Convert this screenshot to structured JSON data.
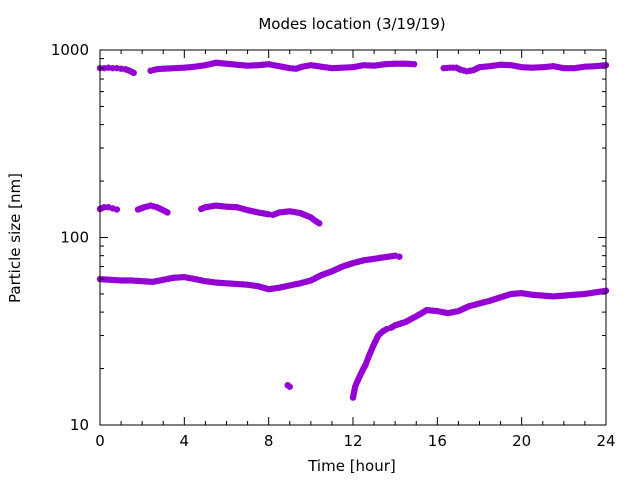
{
  "chart_data": {
    "type": "scatter",
    "title": "Modes location (3/19/19)",
    "xlabel": "Time [hour]",
    "ylabel": "Particle size [nm]",
    "xlim": [
      0,
      24
    ],
    "ylim": [
      10,
      1000
    ],
    "y_scale": "log",
    "x_ticks": [
      0,
      4,
      8,
      12,
      16,
      20,
      24
    ],
    "x_tick_labels": [
      "0",
      "4",
      "8",
      "12",
      "16",
      "20",
      "24"
    ],
    "y_ticks": [
      10,
      100,
      1000
    ],
    "y_tick_labels": [
      "10",
      "100",
      "1000"
    ],
    "grid": false,
    "marker_color": "#9400D3",
    "series": [
      {
        "points": [
          [
            0,
            800
          ],
          [
            0.2,
            800
          ],
          [
            0.4,
            805
          ],
          [
            0.6,
            800
          ],
          [
            0.8,
            800
          ],
          [
            1.0,
            795
          ],
          [
            1.2,
            790
          ],
          [
            1.4,
            775
          ],
          [
            1.6,
            755
          ],
          [
            2.4,
            775
          ],
          [
            2.7,
            790
          ],
          [
            3.0,
            795
          ],
          [
            3.5,
            800
          ],
          [
            4.0,
            805
          ],
          [
            4.5,
            815
          ],
          [
            5.0,
            830
          ],
          [
            5.5,
            855
          ],
          [
            6.0,
            845
          ],
          [
            6.5,
            835
          ],
          [
            7.0,
            825
          ],
          [
            7.5,
            830
          ],
          [
            8.0,
            840
          ],
          [
            8.5,
            820
          ],
          [
            9.0,
            800
          ],
          [
            9.3,
            795
          ],
          [
            9.6,
            815
          ],
          [
            10.0,
            830
          ],
          [
            10.5,
            815
          ],
          [
            11.0,
            800
          ],
          [
            11.5,
            805
          ],
          [
            12.0,
            810
          ],
          [
            12.5,
            830
          ],
          [
            13.0,
            825
          ],
          [
            13.5,
            840
          ],
          [
            14.0,
            845
          ],
          [
            14.5,
            845
          ],
          [
            14.9,
            840
          ],
          [
            16.3,
            800
          ],
          [
            16.6,
            805
          ],
          [
            16.9,
            805
          ],
          [
            17.1,
            785
          ],
          [
            17.4,
            770
          ],
          [
            17.7,
            780
          ],
          [
            18.0,
            810
          ],
          [
            18.5,
            820
          ],
          [
            19.0,
            835
          ],
          [
            19.5,
            830
          ],
          [
            20.0,
            810
          ],
          [
            20.5,
            805
          ],
          [
            21.0,
            810
          ],
          [
            21.5,
            820
          ],
          [
            22.0,
            800
          ],
          [
            22.5,
            800
          ],
          [
            23.0,
            815
          ],
          [
            23.5,
            820
          ],
          [
            24.0,
            830
          ],
          [
            0,
            142
          ],
          [
            0.2,
            145
          ],
          [
            0.4,
            145
          ],
          [
            0.6,
            143
          ],
          [
            0.8,
            141
          ],
          [
            1.8,
            141
          ],
          [
            2.1,
            145
          ],
          [
            2.4,
            148
          ],
          [
            2.7,
            145
          ],
          [
            3.1,
            138
          ],
          [
            3.2,
            136
          ],
          [
            4.8,
            142
          ],
          [
            5.0,
            145
          ],
          [
            5.5,
            148
          ],
          [
            6.0,
            146
          ],
          [
            6.5,
            145
          ],
          [
            7.0,
            140
          ],
          [
            7.5,
            136
          ],
          [
            8.0,
            133
          ],
          [
            8.2,
            132
          ],
          [
            8.5,
            136
          ],
          [
            9.0,
            138
          ],
          [
            9.5,
            135
          ],
          [
            10.0,
            128
          ],
          [
            10.2,
            123
          ],
          [
            10.4,
            119
          ],
          [
            0,
            60
          ],
          [
            0.5,
            59.5
          ],
          [
            1.0,
            59
          ],
          [
            1.5,
            59
          ],
          [
            2.0,
            58.5
          ],
          [
            2.5,
            58
          ],
          [
            3.0,
            59.5
          ],
          [
            3.5,
            61
          ],
          [
            4.0,
            61.5
          ],
          [
            4.5,
            60
          ],
          [
            5.0,
            58.5
          ],
          [
            5.5,
            57.5
          ],
          [
            6.0,
            57
          ],
          [
            6.5,
            56.5
          ],
          [
            7.0,
            56
          ],
          [
            7.5,
            55
          ],
          [
            8.0,
            53
          ],
          [
            8.5,
            54
          ],
          [
            9.0,
            55.5
          ],
          [
            9.5,
            57
          ],
          [
            10.0,
            59
          ],
          [
            10.5,
            63
          ],
          [
            11.0,
            66
          ],
          [
            11.5,
            70
          ],
          [
            12.0,
            73
          ],
          [
            12.5,
            75.5
          ],
          [
            13.0,
            77
          ],
          [
            13.5,
            78.5
          ],
          [
            14.0,
            80
          ],
          [
            14.2,
            79
          ],
          [
            8.9,
            16.3
          ],
          [
            9.0,
            16.0
          ],
          [
            12.0,
            14
          ],
          [
            12.1,
            16
          ],
          [
            12.2,
            17
          ],
          [
            12.3,
            18
          ],
          [
            12.4,
            19
          ],
          [
            12.5,
            20
          ],
          [
            12.6,
            21
          ],
          [
            12.7,
            22.5
          ],
          [
            12.8,
            24
          ],
          [
            12.9,
            25.5
          ],
          [
            13.0,
            27
          ],
          [
            13.1,
            28.5
          ],
          [
            13.2,
            30
          ],
          [
            13.4,
            31.5
          ],
          [
            13.6,
            32.5
          ],
          [
            13.8,
            33
          ],
          [
            14.0,
            34
          ],
          [
            14.5,
            35.5
          ],
          [
            15.0,
            38
          ],
          [
            15.5,
            41
          ],
          [
            16.0,
            40.5
          ],
          [
            16.5,
            39.5
          ],
          [
            17.0,
            40.5
          ],
          [
            17.5,
            43
          ],
          [
            18.0,
            44.5
          ],
          [
            18.5,
            46
          ],
          [
            19.0,
            48
          ],
          [
            19.5,
            50
          ],
          [
            20.0,
            50.5
          ],
          [
            20.5,
            49.5
          ],
          [
            21.0,
            49
          ],
          [
            21.5,
            48.5
          ],
          [
            22.0,
            49
          ],
          [
            22.5,
            49.5
          ],
          [
            23.0,
            50
          ],
          [
            23.5,
            51
          ],
          [
            24.0,
            52
          ]
        ]
      }
    ]
  }
}
